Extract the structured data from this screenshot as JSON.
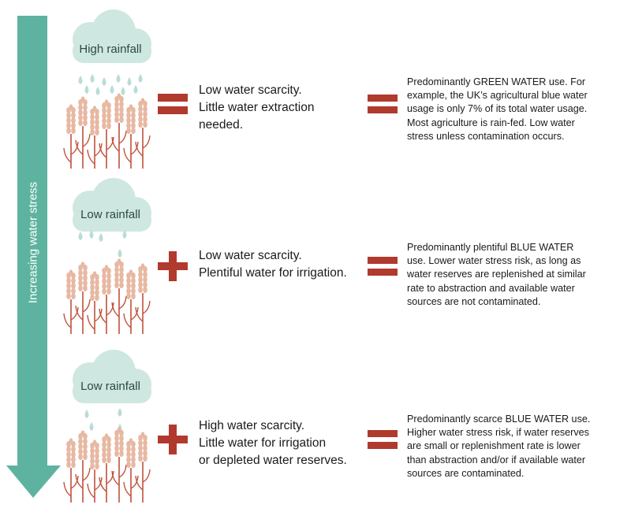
{
  "arrow": {
    "label": "Increasing water stress",
    "color": "#5eb3a0"
  },
  "colors": {
    "cloud": "#cfe7e1",
    "drop": "#b9ddd6",
    "operator": "#b03a2e",
    "wheat_head": "#e7b8a2",
    "wheat_stem": "#c0513b"
  },
  "rows": [
    {
      "cloud_label": "High rainfall",
      "rain": "heavy",
      "operator": "equals",
      "statement": [
        "Low water scarcity.",
        "Little water extraction",
        "needed."
      ],
      "description": [
        "Predominantly GREEN WATER use. For",
        "example, the UK’s agricultural blue water",
        "usage is only 7% of its total water usage.",
        "Most agriculture is rain-fed. Low water",
        "stress unless contamination occurs."
      ]
    },
    {
      "cloud_label": "Low rainfall",
      "rain": "light",
      "operator": "plus",
      "statement": [
        "Low water scarcity.",
        "Plentiful water for irrigation."
      ],
      "description": [
        "Predominantly plentiful BLUE WATER",
        "use. Lower water stress risk, as long as",
        "water reserves are replenished at similar",
        "rate to abstraction and available water",
        "sources are not contaminated."
      ]
    },
    {
      "cloud_label": "Low rainfall",
      "rain": "light",
      "operator": "plus",
      "statement": [
        "High water scarcity.",
        "Little water for irrigation",
        "or depleted water reserves."
      ],
      "description": [
        "Predominantly scarce BLUE WATER use.",
        "Higher water stress risk, if water reserves",
        "are small or replenishment rate is lower",
        "than abstraction and/or if available water",
        "sources are contaminated."
      ]
    }
  ]
}
